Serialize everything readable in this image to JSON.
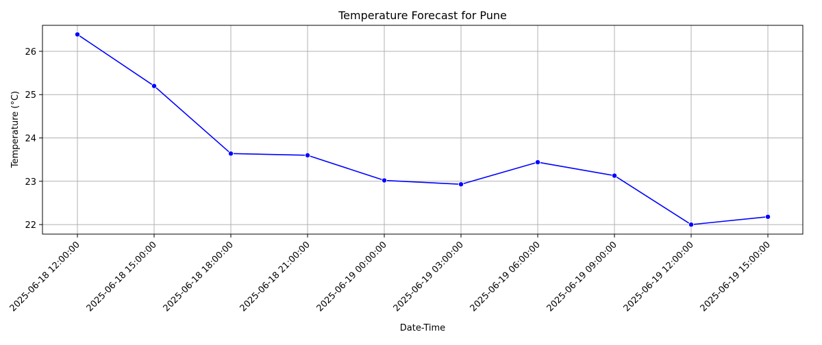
{
  "chart_data": {
    "type": "line",
    "title": "Temperature Forecast for Pune",
    "xlabel": "Date-Time",
    "ylabel": "Temperature (°C)",
    "categories": [
      "2025-06-18 12:00:00",
      "2025-06-18 15:00:00",
      "2025-06-18 18:00:00",
      "2025-06-18 21:00:00",
      "2025-06-19 00:00:00",
      "2025-06-19 03:00:00",
      "2025-06-19 06:00:00",
      "2025-06-19 09:00:00",
      "2025-06-19 12:00:00",
      "2025-06-19 15:00:00"
    ],
    "series": [
      {
        "values": [
          26.39,
          25.2,
          23.64,
          23.6,
          23.02,
          22.93,
          23.44,
          23.13,
          22.0,
          22.18
        ],
        "color": "#0000ff"
      }
    ],
    "y_ticks": [
      22,
      23,
      24,
      25,
      26
    ],
    "ylim": [
      21.78,
      26.6
    ],
    "grid": true,
    "legend": false
  }
}
